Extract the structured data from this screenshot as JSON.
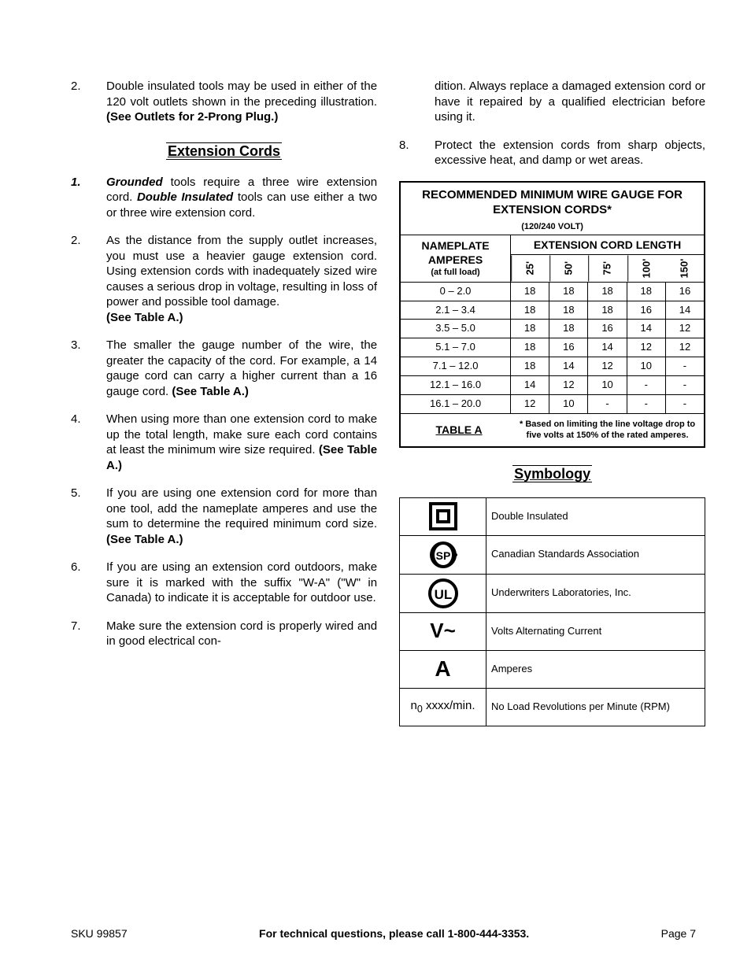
{
  "left_top_item": {
    "num": "2.",
    "text_a": "Double insulated tools may be used in either of the 120 volt outlets shown in the preceding illustration.  ",
    "text_b": "(See Outlets for 2-Prong Plug.)"
  },
  "section_ext_title": "Extension Cords",
  "ext_items": [
    {
      "num": "1.",
      "italicnum": true,
      "parts": [
        {
          "t": "Grounded",
          "bi": true
        },
        {
          "t": " tools require a three wire extension cord.  "
        },
        {
          "t": "Double Insulated",
          "bi": true
        },
        {
          "t": " tools can use either a two or three wire extension cord."
        }
      ]
    },
    {
      "num": "2.",
      "parts": [
        {
          "t": "As the distance from the supply outlet increases, you must use a heavier gauge extension cord.  Using extension cords with inadequately sized wire causes a serious drop in voltage, resulting in loss of power and possible tool damage."
        },
        {
          "br": true
        },
        {
          "t": "(See Table A.)",
          "b": true
        }
      ]
    },
    {
      "num": "3.",
      "parts": [
        {
          "t": "The smaller the gauge number of the wire, the greater the capacity of the cord.  For example, a 14 gauge cord can carry a higher current than a 16 gauge cord.  "
        },
        {
          "t": "(See Table A.)",
          "b": true
        }
      ]
    },
    {
      "num": "4.",
      "parts": [
        {
          "t": "When using more than one extension cord to make up the total length, make sure each cord contains at least the minimum wire size required.  "
        },
        {
          "t": "(See Table A.)",
          "b": true
        }
      ]
    },
    {
      "num": "5.",
      "parts": [
        {
          "t": "If you are using one extension cord for more than one tool, add the nameplate amperes and use the sum to determine the required minimum cord size.  "
        },
        {
          "t": "(See Table A.)",
          "b": true
        }
      ]
    },
    {
      "num": "6.",
      "parts": [
        {
          "t": "If you are using an extension cord outdoors, make sure it is marked with the suffix \"W-A\" (\"W\" in Canada) to indicate it is acceptable for outdoor use."
        }
      ]
    },
    {
      "num": "7.",
      "parts": [
        {
          "t": "Make sure the extension cord is properly wired and in good electrical con-"
        }
      ]
    }
  ],
  "right_cont": "dition.  Always replace a damaged extension cord or have it repaired by a qualified electrician before using it.",
  "right_item8": {
    "num": "8.",
    "text": "Protect the extension cords from sharp objects, excessive heat, and damp or wet areas."
  },
  "wire_table": {
    "title": "RECOMMENDED MINIMUM WIRE GAUGE FOR EXTENSION CORDS*",
    "subtitle": "(120/240 VOLT)",
    "col1_a": "NAMEPLATE",
    "col1_b": "AMPERES",
    "col1_c": "(at full load)",
    "ecl": "EXTENSION CORD LENGTH",
    "lengths": [
      "25'",
      "50'",
      "75'",
      "100'",
      "150'"
    ],
    "rows": [
      {
        "amp": "0 – 2.0",
        "vals": [
          "18",
          "18",
          "18",
          "18",
          "16"
        ]
      },
      {
        "amp": "2.1 – 3.4",
        "vals": [
          "18",
          "18",
          "18",
          "16",
          "14"
        ]
      },
      {
        "amp": "3.5 – 5.0",
        "vals": [
          "18",
          "18",
          "16",
          "14",
          "12"
        ]
      },
      {
        "amp": "5.1 – 7.0",
        "vals": [
          "18",
          "16",
          "14",
          "12",
          "12"
        ]
      },
      {
        "amp": "7.1 – 12.0",
        "vals": [
          "18",
          "14",
          "12",
          "10",
          "-"
        ]
      },
      {
        "amp": "12.1 – 16.0",
        "vals": [
          "14",
          "12",
          "10",
          "-",
          "-"
        ]
      },
      {
        "amp": "16.1 – 20.0",
        "vals": [
          "12",
          "10",
          "-",
          "-",
          "-"
        ]
      }
    ],
    "foot_label": "TABLE A",
    "foot_note": "* Based on limiting the line voltage drop to five volts at 150% of the rated amperes."
  },
  "symbology_title": "Symbology",
  "symbology": [
    {
      "label": "Double Insulated"
    },
    {
      "label": "Canadian Standards Association"
    },
    {
      "label": "Underwriters Laboratories, Inc."
    },
    {
      "label": "Volts Alternating Current"
    },
    {
      "label": "Amperes"
    },
    {
      "label": "No Load Revolutions per Minute (RPM)"
    }
  ],
  "sym_text": {
    "vac": "V~",
    "amp": "A",
    "rpm_a": "n",
    "rpm_b": "0",
    "rpm_c": " xxxx/min."
  },
  "footer": {
    "sku": "SKU 99857",
    "mid": "For technical questions, please call 1-800-444-3353.",
    "page": "Page 7"
  }
}
